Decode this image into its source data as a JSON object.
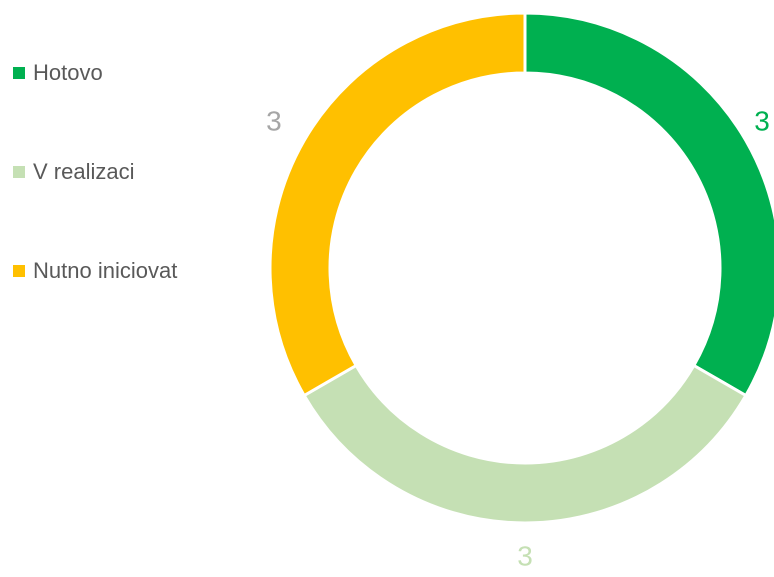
{
  "chart_data": {
    "type": "donut",
    "categories": [
      "Hotovo",
      "V realizaci",
      "Nutno iniciovat"
    ],
    "values": [
      3,
      3,
      3
    ],
    "colors": [
      "#00b050",
      "#c5e0b4",
      "#ffc000"
    ],
    "label_colors": [
      "#00b050",
      "#c5e0b4",
      "#a6a6a6"
    ],
    "legend": "left"
  }
}
